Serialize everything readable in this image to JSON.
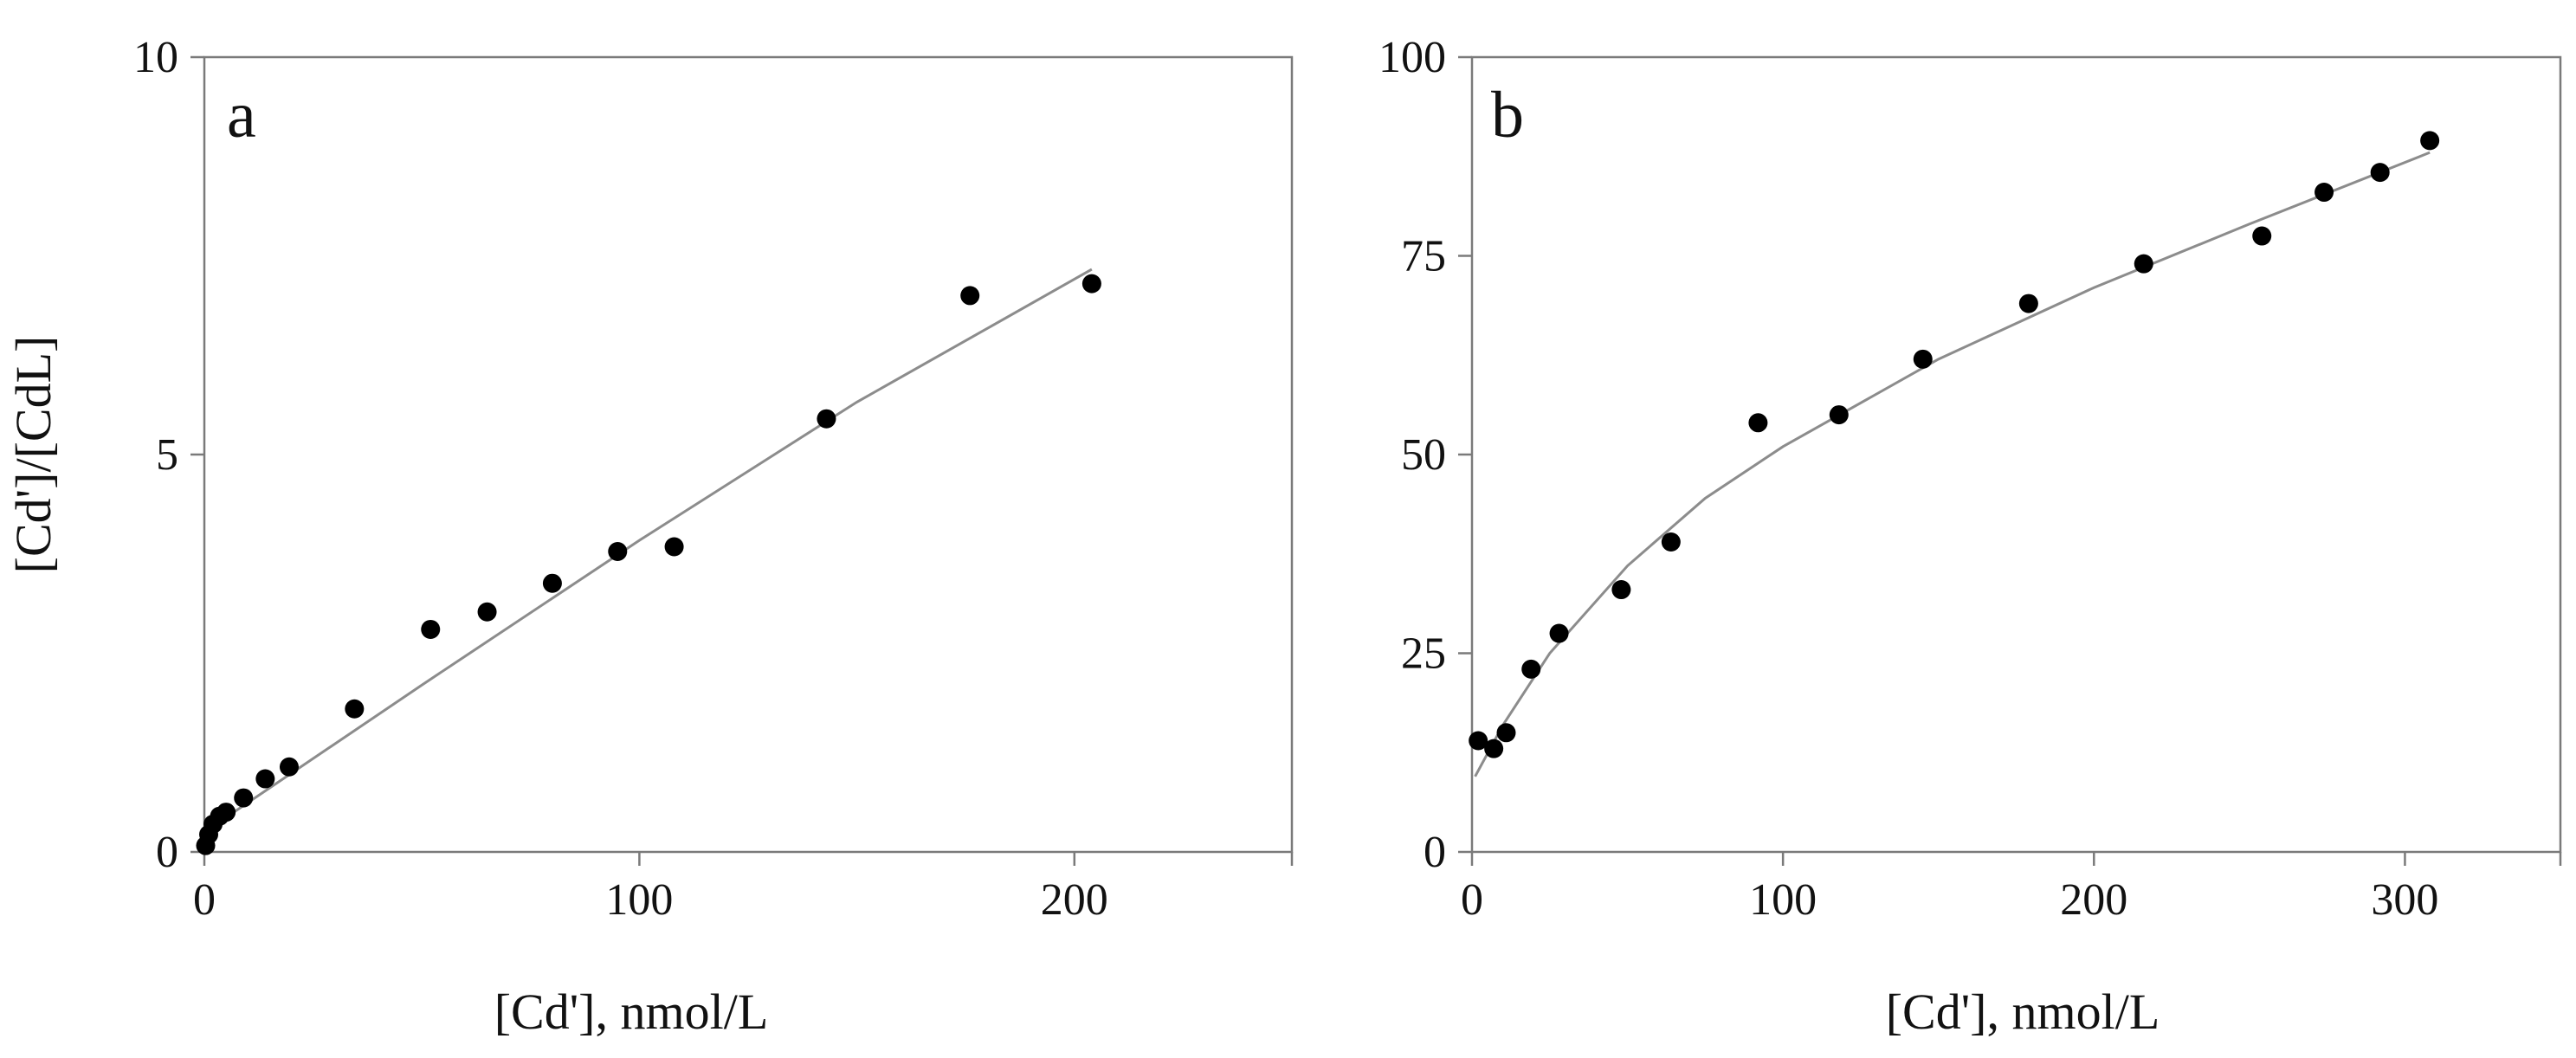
{
  "chart_data": [
    {
      "type": "scatter",
      "panel_label": "a",
      "xlabel": "[Cd'], nmol/L",
      "ylabel": "[Cd']/[CdL]",
      "xlim": [
        0,
        250
      ],
      "ylim": [
        0,
        10
      ],
      "xticks": [
        0,
        100,
        200
      ],
      "yticks": [
        0,
        5,
        10
      ],
      "xtick_labels": [
        "0",
        "100",
        "200"
      ],
      "ytick_labels": [
        "0",
        "5",
        "10"
      ],
      "grid": false,
      "series": [
        {
          "points": [
            [
              0.3,
              0.08
            ],
            [
              1.0,
              0.22
            ],
            [
              2.0,
              0.35
            ],
            [
              3.5,
              0.45
            ],
            [
              5.0,
              0.5
            ],
            [
              9.0,
              0.68
            ],
            [
              14.0,
              0.92
            ],
            [
              19.5,
              1.07
            ],
            [
              34.5,
              1.8
            ],
            [
              52.0,
              2.8
            ],
            [
              65.0,
              3.02
            ],
            [
              80.0,
              3.38
            ],
            [
              95.0,
              3.78
            ],
            [
              108.0,
              3.84
            ],
            [
              143.0,
              5.45
            ],
            [
              176.0,
              7.0
            ],
            [
              204.0,
              7.15
            ]
          ],
          "fit_line": [
            [
              0,
              0.25
            ],
            [
              50,
              2.1
            ],
            [
              100,
              3.92
            ],
            [
              150,
              5.66
            ],
            [
              204,
              7.33
            ]
          ]
        }
      ]
    },
    {
      "type": "scatter",
      "panel_label": "b",
      "xlabel": "[Cd'], nmol/L",
      "ylabel": "",
      "xlim": [
        0,
        350
      ],
      "ylim": [
        0,
        100
      ],
      "xticks": [
        0,
        100,
        200,
        300
      ],
      "yticks": [
        0,
        25,
        50,
        75,
        100
      ],
      "xtick_labels": [
        "0",
        "100",
        "200",
        "300"
      ],
      "ytick_labels": [
        "0",
        "25",
        "50",
        "75",
        "100"
      ],
      "grid": false,
      "series": [
        {
          "points": [
            [
              2,
              14
            ],
            [
              7,
              13
            ],
            [
              11,
              15
            ],
            [
              19,
              23
            ],
            [
              28,
              27.5
            ],
            [
              48,
              33
            ],
            [
              64,
              39
            ],
            [
              92,
              54
            ],
            [
              118,
              55
            ],
            [
              145,
              62
            ],
            [
              179,
              69
            ],
            [
              216,
              74
            ],
            [
              254,
              77.5
            ],
            [
              274,
              83
            ],
            [
              292,
              85.5
            ],
            [
              308,
              89.5
            ]
          ],
          "fit_line": [
            [
              1,
              9.5
            ],
            [
              10,
              16
            ],
            [
              25,
              25
            ],
            [
              50,
              36
            ],
            [
              75,
              44.5
            ],
            [
              100,
              51
            ],
            [
              150,
              62
            ],
            [
              200,
              71
            ],
            [
              250,
              79
            ],
            [
              308,
              88
            ]
          ]
        }
      ]
    }
  ]
}
